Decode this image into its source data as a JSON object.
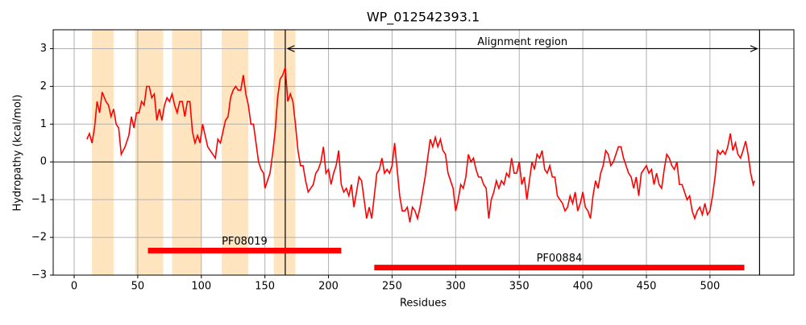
{
  "chart_data": {
    "type": "line",
    "title": "WP_012542393.1",
    "xlabel": "Residues",
    "ylabel": "Hydropathy (kcal/mol)",
    "color": "#ff0000",
    "grid": true,
    "xlim": [
      -16.5,
      566
    ],
    "ylim": [
      -3,
      3.5
    ],
    "xticks": [
      0,
      50,
      100,
      150,
      200,
      250,
      300,
      350,
      400,
      450,
      500
    ],
    "yticks": [
      {
        "value": -3,
        "label": "−3"
      },
      {
        "value": -2,
        "label": "−2"
      },
      {
        "value": -1,
        "label": "−1"
      },
      0,
      1,
      2,
      3
    ],
    "x": [
      10,
      12,
      14,
      16,
      18,
      20,
      22,
      25,
      27,
      29,
      31,
      33,
      35,
      37,
      40,
      43,
      45,
      47,
      49,
      51,
      53,
      55,
      57,
      59,
      61,
      63,
      65,
      67,
      69,
      71,
      73,
      75,
      77,
      79,
      81,
      83,
      85,
      87,
      89,
      91,
      93,
      95,
      97,
      99,
      101,
      103,
      105,
      107,
      109,
      111,
      113,
      115,
      117,
      119,
      121,
      123,
      125,
      127,
      129,
      131,
      133,
      135,
      137,
      139,
      141,
      143,
      145,
      147,
      149,
      150,
      152,
      154,
      156,
      158,
      160,
      162,
      164,
      166,
      168,
      170,
      172,
      174,
      176,
      178,
      180,
      182,
      184,
      186,
      188,
      190,
      192,
      194,
      196,
      198,
      200,
      202,
      204,
      206,
      208,
      210,
      212,
      214,
      216,
      218,
      220,
      222,
      224,
      226,
      228,
      230,
      232,
      234,
      236,
      238,
      240,
      242,
      244,
      246,
      248,
      250,
      252,
      254,
      256,
      258,
      260,
      262,
      264,
      266,
      268,
      270,
      272,
      274,
      276,
      278,
      280,
      282,
      284,
      286,
      288,
      290,
      292,
      294,
      296,
      298,
      300,
      302,
      304,
      306,
      308,
      310,
      312,
      314,
      316,
      318,
      320,
      322,
      324,
      326,
      328,
      330,
      332,
      334,
      336,
      338,
      340,
      342,
      344,
      346,
      348,
      350,
      352,
      354,
      356,
      358,
      360,
      362,
      364,
      366,
      368,
      370,
      372,
      374,
      376,
      378,
      380,
      382,
      384,
      386,
      388,
      390,
      392,
      394,
      396,
      398,
      400,
      402,
      404,
      406,
      408,
      410,
      412,
      414,
      416,
      418,
      420,
      422,
      424,
      426,
      428,
      430,
      432,
      434,
      436,
      438,
      440,
      442,
      444,
      446,
      448,
      450,
      452,
      454,
      456,
      458,
      460,
      462,
      464,
      466,
      468,
      470,
      472,
      474,
      476,
      478,
      480,
      482,
      484,
      486,
      488,
      490,
      492,
      494,
      496,
      498,
      500,
      502,
      504,
      506,
      508,
      510,
      512,
      514,
      516,
      518,
      520,
      522,
      524,
      526,
      528,
      530,
      532,
      534,
      535
    ],
    "values": [
      0.6,
      0.75,
      0.5,
      0.9,
      1.6,
      1.3,
      1.85,
      1.6,
      1.5,
      1.2,
      1.4,
      1.0,
      0.9,
      0.2,
      0.4,
      0.7,
      1.2,
      0.9,
      1.3,
      1.3,
      1.6,
      1.5,
      2.0,
      2.0,
      1.7,
      1.8,
      1.1,
      1.4,
      1.1,
      1.5,
      1.7,
      1.6,
      1.8,
      1.5,
      1.3,
      1.6,
      1.6,
      1.2,
      1.6,
      1.6,
      0.8,
      0.5,
      0.7,
      0.5,
      1.0,
      0.7,
      0.4,
      0.3,
      0.2,
      0.1,
      0.6,
      0.5,
      0.8,
      1.1,
      1.2,
      1.7,
      1.9,
      2.0,
      1.9,
      1.9,
      2.3,
      1.8,
      1.5,
      1.0,
      1.0,
      0.5,
      0.0,
      -0.2,
      -0.3,
      -0.7,
      -0.5,
      -0.3,
      0.2,
      0.8,
      1.7,
      2.2,
      2.3,
      2.5,
      1.6,
      1.8,
      1.6,
      1.0,
      0.3,
      -0.1,
      -0.1,
      -0.5,
      -0.8,
      -0.7,
      -0.6,
      -0.3,
      -0.2,
      0.0,
      0.4,
      -0.3,
      -0.2,
      -0.6,
      -0.3,
      -0.1,
      0.3,
      -0.6,
      -0.8,
      -0.7,
      -0.9,
      -0.6,
      -1.2,
      -0.8,
      -0.4,
      -0.5,
      -1.0,
      -1.5,
      -1.2,
      -1.5,
      -0.9,
      -0.3,
      -0.2,
      0.1,
      -0.3,
      -0.2,
      -0.3,
      -0.1,
      0.5,
      -0.2,
      -0.9,
      -1.3,
      -1.3,
      -1.2,
      -1.6,
      -1.2,
      -1.3,
      -1.5,
      -1.2,
      -0.8,
      -0.4,
      0.1,
      0.6,
      0.4,
      0.65,
      0.4,
      0.6,
      0.3,
      0.2,
      -0.3,
      -0.5,
      -0.7,
      -1.3,
      -1.0,
      -0.6,
      -0.7,
      -0.4,
      0.2,
      0.0,
      0.1,
      -0.2,
      -0.4,
      -0.4,
      -0.6,
      -0.7,
      -1.5,
      -1.0,
      -0.8,
      -0.5,
      -0.7,
      -0.5,
      -0.6,
      -0.3,
      -0.4,
      0.1,
      -0.3,
      -0.3,
      0.0,
      -0.6,
      -0.4,
      -1.0,
      -0.5,
      0.0,
      -0.2,
      0.2,
      0.1,
      0.3,
      -0.2,
      -0.3,
      -0.1,
      -0.4,
      -0.4,
      -0.9,
      -1.0,
      -1.1,
      -1.3,
      -1.2,
      -0.9,
      -1.1,
      -0.8,
      -1.3,
      -1.1,
      -0.8,
      -1.2,
      -1.3,
      -1.5,
      -0.9,
      -0.5,
      -0.7,
      -0.3,
      -0.1,
      0.3,
      0.2,
      -0.1,
      0.0,
      0.2,
      0.4,
      0.4,
      0.1,
      -0.1,
      -0.3,
      -0.4,
      -0.7,
      -0.4,
      -0.9,
      -0.3,
      -0.2,
      -0.1,
      -0.3,
      -0.2,
      -0.6,
      -0.3,
      -0.6,
      -0.7,
      -0.2,
      0.2,
      0.1,
      -0.1,
      -0.2,
      0.0,
      -0.6,
      -0.6,
      -0.8,
      -1.0,
      -0.9,
      -1.3,
      -1.5,
      -1.3,
      -1.2,
      -1.4,
      -1.1,
      -1.4,
      -1.3,
      -0.9,
      -0.4,
      0.3,
      0.2,
      0.3,
      0.2,
      0.4,
      0.75,
      0.3,
      0.5,
      0.2,
      0.1,
      0.3,
      0.55,
      0.2,
      -0.3,
      -0.6,
      -0.5
    ],
    "spans": [
      [
        14,
        31
      ],
      [
        48,
        70
      ],
      [
        77,
        100
      ],
      [
        116,
        137
      ],
      [
        157,
        174
      ]
    ],
    "span_color": "#ffe5bf",
    "hline": 0,
    "vlines": [
      166,
      539
    ],
    "annotation": {
      "text": "Alignment region",
      "x": [
        166,
        539
      ],
      "y": 3
    },
    "domains": [
      {
        "label": "PF08019",
        "start": 58,
        "end": 210,
        "y": -2.35
      },
      {
        "label": "PF00884",
        "start": 236,
        "end": 527,
        "y": -2.8
      }
    ]
  }
}
